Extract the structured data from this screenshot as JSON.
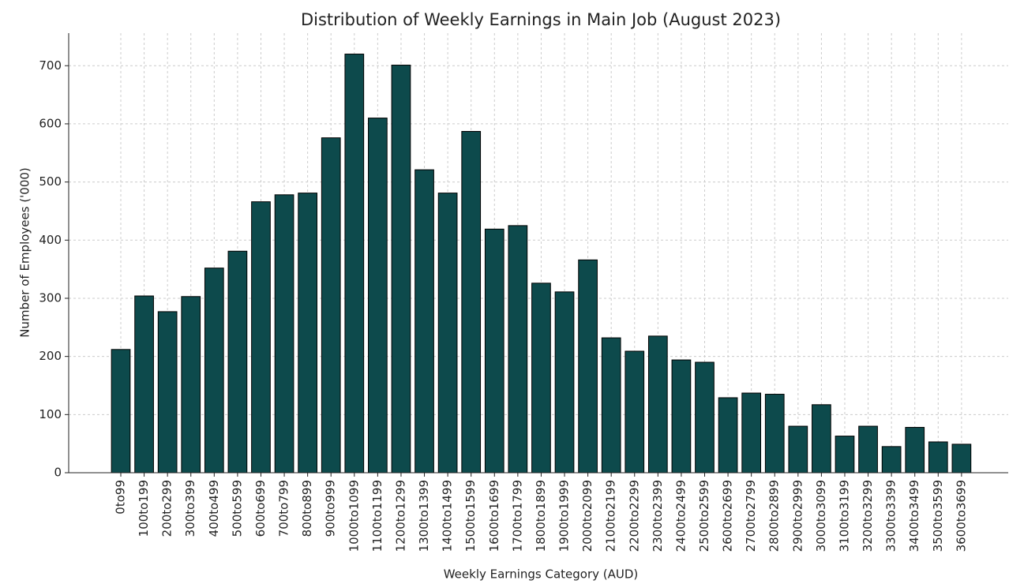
{
  "chart_data": {
    "type": "bar",
    "title": "Distribution of Weekly Earnings in Main Job (August 2023)",
    "xlabel": "Weekly Earnings Category (AUD)",
    "ylabel": "Number of Employees ('000)",
    "categories": [
      "0to99",
      "100to199",
      "200to299",
      "300to399",
      "400to499",
      "500to599",
      "600to699",
      "700to799",
      "800to899",
      "900to999",
      "1000to1099",
      "1100to1199",
      "1200to1299",
      "1300to1399",
      "1400to1499",
      "1500to1599",
      "1600to1699",
      "1700to1799",
      "1800to1899",
      "1900to1999",
      "2000to2099",
      "2100to2199",
      "2200to2299",
      "2300to2399",
      "2400to2499",
      "2500to2599",
      "2600to2699",
      "2700to2799",
      "2800to2899",
      "2900to2999",
      "3000to3099",
      "3100to3199",
      "3200to3299",
      "3300to3399",
      "3400to3499",
      "3500to3599",
      "3600to3699"
    ],
    "values": [
      212,
      304,
      277,
      303,
      352,
      381,
      466,
      478,
      481,
      576,
      720,
      610,
      701,
      521,
      481,
      587,
      419,
      425,
      326,
      311,
      366,
      232,
      209,
      235,
      194,
      190,
      129,
      137,
      135,
      80,
      117,
      63,
      80,
      45,
      78,
      53,
      49
    ],
    "color": "#0d4a4c",
    "ylim": [
      0,
      756
    ],
    "yticks": [
      0,
      100,
      200,
      300,
      400,
      500,
      600,
      700
    ],
    "grid": true
  }
}
